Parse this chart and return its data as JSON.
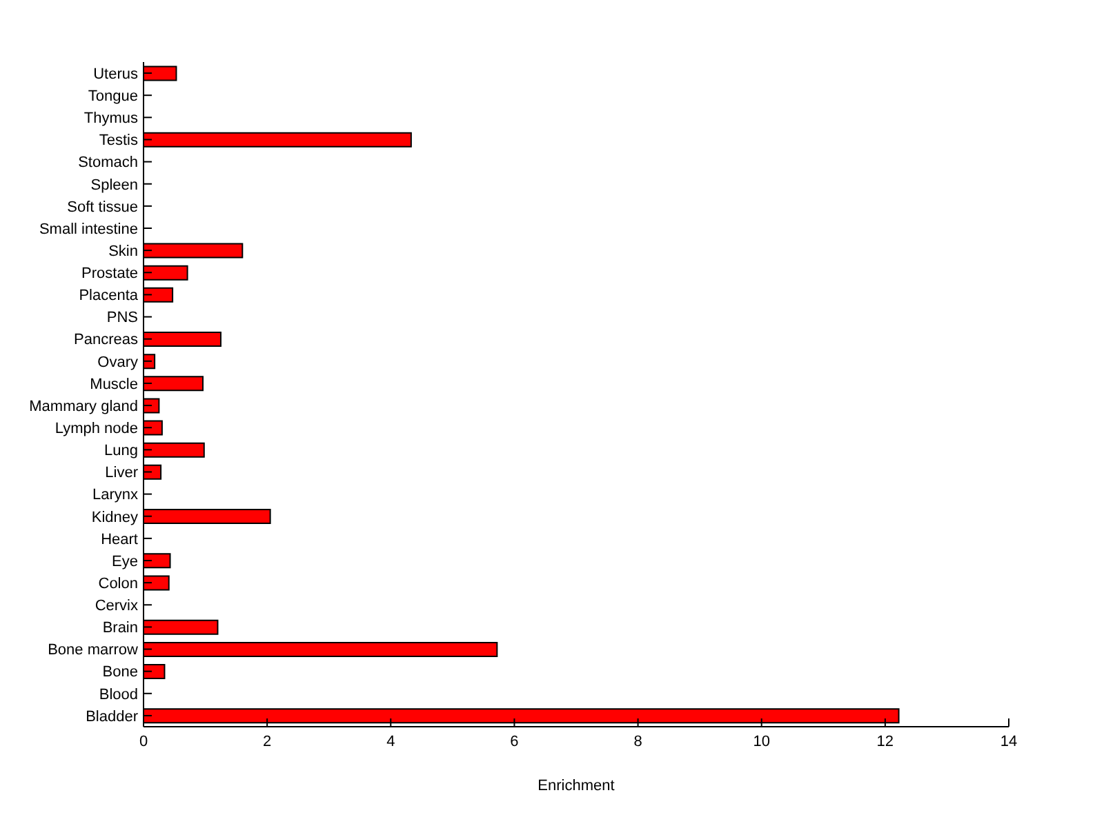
{
  "chart_data": {
    "type": "bar",
    "orientation": "horizontal",
    "xlabel": "Enrichment",
    "categories": [
      "Uterus",
      "Tongue",
      "Thymus",
      "Testis",
      "Stomach",
      "Spleen",
      "Soft tissue",
      "Small intestine",
      "Skin",
      "Prostate",
      "Placenta",
      "PNS",
      "Pancreas",
      "Ovary",
      "Muscle",
      "Mammary gland",
      "Lymph node",
      "Lung",
      "Liver",
      "Larynx",
      "Kidney",
      "Heart",
      "Eye",
      "Colon",
      "Cervix",
      "Brain",
      "Bone marrow",
      "Bone",
      "Blood",
      "Bladder"
    ],
    "values": [
      0.53,
      0,
      0,
      4.33,
      0,
      0,
      0,
      0,
      1.6,
      0.71,
      0.47,
      0,
      1.25,
      0.18,
      0.96,
      0.25,
      0.3,
      0.98,
      0.28,
      0,
      2.05,
      0,
      0.43,
      0.41,
      0,
      1.2,
      5.72,
      0.34,
      0,
      12.22
    ],
    "color": "#ff0000",
    "xlim": [
      0,
      14
    ],
    "xticks": [
      0,
      2,
      4,
      6,
      8,
      10,
      12,
      14
    ],
    "grid": false
  }
}
